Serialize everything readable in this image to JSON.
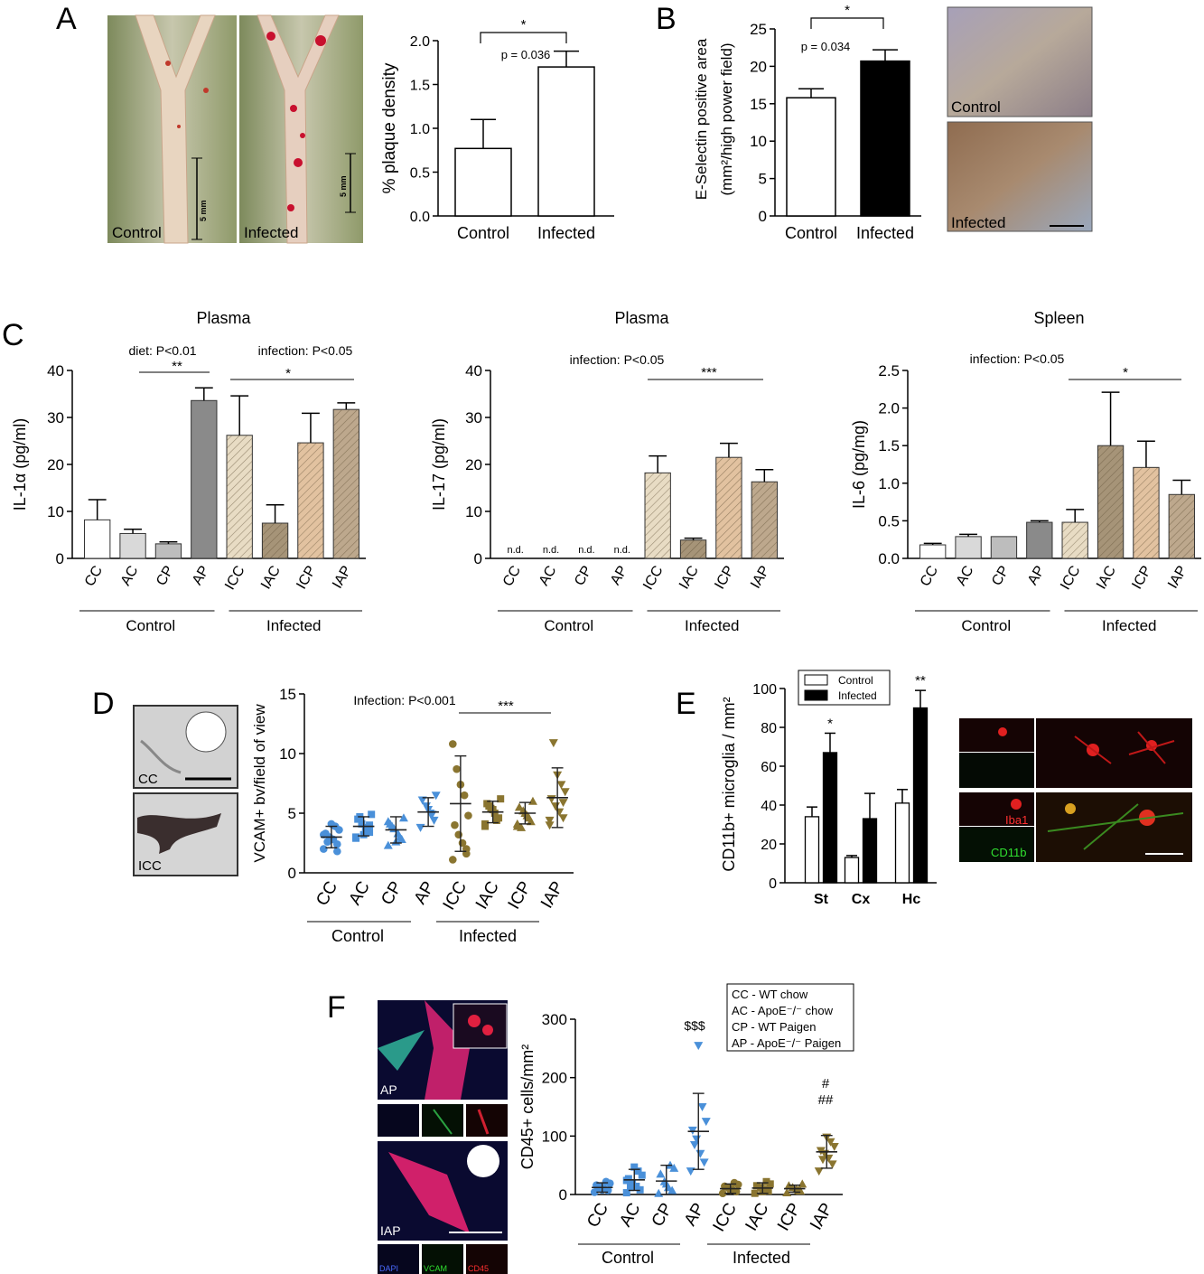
{
  "panel_labels": {
    "A": "A",
    "B": "B",
    "C": "C",
    "D": "D",
    "E": "E",
    "F": "F"
  },
  "photos": {
    "a_control": "Control",
    "a_infected": "Infected",
    "a_scale": "5 mm",
    "b_control": "Control",
    "b_infected": "Infected",
    "d_cc": "CC",
    "d_icc": "ICC",
    "e_iba1": "Iba1",
    "e_cd11b": "CD11b",
    "f_ap": "AP",
    "f_iap": "IAP",
    "f_dapi": "DAPI",
    "f_vcam": "VCAM",
    "f_cd45": "CD45"
  },
  "colors": {
    "control_white": "#ffffff",
    "ac_gray": "#d9d9d9",
    "cp_gray": "#bdbdbd",
    "ap_gray": "#8a8a8a",
    "icc_hatch": "#e8dcc4",
    "iac_hatch": "#a69478",
    "icp_hatch": "#e2c2a0",
    "iap_hatch": "#bda88d",
    "control_points": "#4a90d9",
    "infected_points": "#8a7530",
    "black_bar": "#000000"
  },
  "chart_data": [
    {
      "id": "A",
      "type": "bar",
      "categories": [
        "Control",
        "Infected"
      ],
      "values": [
        0.77,
        1.7
      ],
      "errors": [
        0.33,
        0.18
      ],
      "ylabel": "% plaque density",
      "ylim": [
        0,
        2.0
      ],
      "yticks": [
        "0.0",
        "0.5",
        "1.0",
        "1.5",
        "2.0"
      ],
      "significance": "*",
      "pvalue": "p = 0.036"
    },
    {
      "id": "B",
      "type": "bar",
      "categories": [
        "Control",
        "Infected"
      ],
      "values": [
        15.8,
        20.7
      ],
      "errors": [
        1.2,
        1.5
      ],
      "ylabel": "E-Selectin positive area",
      "ylabel2": "(mm²/high power field)",
      "ylim": [
        0,
        25
      ],
      "yticks": [
        "0",
        "5",
        "10",
        "15",
        "20",
        "25"
      ],
      "significance": "*",
      "pvalue": "p = 0.034"
    },
    {
      "id": "C1",
      "type": "bar",
      "title": "Plasma",
      "categories": [
        "CC",
        "AC",
        "CP",
        "AP",
        "ICC",
        "IAC",
        "ICP",
        "IAP"
      ],
      "values": [
        8.2,
        5.3,
        3.1,
        33.6,
        26.2,
        7.5,
        24.6,
        31.7
      ],
      "errors": [
        4.3,
        0.9,
        0.4,
        2.7,
        8.4,
        3.9,
        6.3,
        1.4
      ],
      "ylabel": "IL-1α (pg/ml)",
      "ylim": [
        0,
        40
      ],
      "yticks": [
        "0",
        "10",
        "20",
        "30",
        "40"
      ],
      "annotations": [
        "diet: P<0.01",
        "infection: P<0.05",
        "**",
        "*"
      ],
      "groups": [
        "Control",
        "Infected"
      ]
    },
    {
      "id": "C2",
      "type": "bar",
      "title": "Plasma",
      "categories": [
        "CC",
        "AC",
        "CP",
        "AP",
        "ICC",
        "IAC",
        "ICP",
        "IAP"
      ],
      "values": [
        0,
        0,
        0,
        0,
        18.2,
        3.9,
        21.5,
        16.3
      ],
      "errors": [
        0,
        0,
        0,
        0,
        3.6,
        0.4,
        3.0,
        2.6
      ],
      "nd_labels": [
        "n.d.",
        "n.d.",
        "n.d.",
        "n.d."
      ],
      "ylabel": "IL-17 (pg/ml)",
      "ylim": [
        0,
        40
      ],
      "yticks": [
        "0",
        "10",
        "20",
        "30",
        "40"
      ],
      "annotations": [
        "infection: P<0.05",
        "***"
      ],
      "groups": [
        "Control",
        "Infected"
      ]
    },
    {
      "id": "C3",
      "type": "bar",
      "title": "Spleen",
      "categories": [
        "CC",
        "AC",
        "CP",
        "AP",
        "ICC",
        "IAC",
        "ICP",
        "IAP"
      ],
      "values": [
        0.18,
        0.29,
        0.29,
        0.48,
        0.48,
        1.5,
        1.21,
        0.85
      ],
      "errors": [
        0.02,
        0.03,
        0.0,
        0.02,
        0.17,
        0.71,
        0.35,
        0.19
      ],
      "ylabel": "IL-6 (pg/mg)",
      "ylim": [
        0,
        2.5
      ],
      "yticks": [
        "0.0",
        "0.5",
        "1.0",
        "1.5",
        "2.0",
        "2.5"
      ],
      "annotations": [
        "infection: P<0.05",
        "*"
      ],
      "groups": [
        "Control",
        "Infected"
      ]
    },
    {
      "id": "D",
      "type": "scatter",
      "categories": [
        "CC",
        "AC",
        "CP",
        "AP",
        "ICC",
        "IAC",
        "ICP",
        "IAP"
      ],
      "means": [
        3.0,
        3.9,
        3.6,
        5.1,
        5.8,
        5.1,
        5.0,
        6.3
      ],
      "sd": [
        0.9,
        0.8,
        1.1,
        1.2,
        4.0,
        0.9,
        0.9,
        2.5
      ],
      "points": [
        [
          2.0,
          2.4,
          2.8,
          3.0,
          3.3,
          3.6,
          3.9,
          4.1,
          2.6,
          3.2,
          1.8
        ],
        [
          3.0,
          3.4,
          3.8,
          4.1,
          4.5,
          4.9,
          3.6,
          3.2,
          4.7,
          2.9,
          4.0
        ],
        [
          2.3,
          2.8,
          3.3,
          3.7,
          4.1,
          4.6,
          3.0,
          2.6,
          3.9,
          4.3
        ],
        [
          3.8,
          4.4,
          5.0,
          5.6,
          6.1,
          6.5,
          4.9,
          5.3
        ],
        [
          1.1,
          2.0,
          2.5,
          3.2,
          4.0,
          4.8,
          6.5,
          7.4,
          8.7,
          10.8,
          1.6
        ],
        [
          4.1,
          4.6,
          5.0,
          5.4,
          5.8,
          6.2,
          4.4,
          5.3,
          5.6,
          3.9
        ],
        [
          3.9,
          4.3,
          4.8,
          5.2,
          5.5,
          6.0,
          4.6,
          5.0,
          3.8,
          4.1
        ],
        [
          4.0,
          4.6,
          5.1,
          5.6,
          6.2,
          6.8,
          7.4,
          8.2,
          10.9,
          4.4,
          5.9
        ]
      ],
      "ylabel": "VCAM+ bv/field of view",
      "ylim": [
        0,
        15
      ],
      "yticks": [
        "0",
        "5",
        "10",
        "15"
      ],
      "annotations": [
        "Infection: P<0.001",
        "***"
      ],
      "groups": [
        "Control",
        "Infected"
      ]
    },
    {
      "id": "E",
      "type": "bar",
      "categories": [
        "St",
        "Cx",
        "Hc"
      ],
      "series": [
        {
          "name": "Control",
          "values": [
            34,
            13,
            41
          ],
          "errors": [
            5,
            1,
            7
          ]
        },
        {
          "name": "Infected",
          "values": [
            67,
            33,
            90
          ],
          "errors": [
            10,
            13,
            9
          ]
        }
      ],
      "significance": [
        "*",
        "",
        "**"
      ],
      "ylabel": "CD11b+ microglia / mm²",
      "ylim": [
        0,
        100
      ],
      "yticks": [
        "0",
        "20",
        "40",
        "60",
        "80",
        "100"
      ],
      "legend": "top-left"
    },
    {
      "id": "F",
      "type": "scatter",
      "categories": [
        "CC",
        "AC",
        "CP",
        "AP",
        "ICC",
        "IAC",
        "ICP",
        "IAP"
      ],
      "means": [
        12,
        25,
        23,
        108,
        10,
        11,
        10,
        73
      ],
      "sd": [
        8,
        18,
        27,
        65,
        8,
        9,
        6,
        28
      ],
      "points": [
        [
          4,
          7,
          10,
          13,
          16,
          19,
          22,
          8,
          11
        ],
        [
          3,
          8,
          14,
          20,
          27,
          33,
          40,
          47,
          12,
          24
        ],
        [
          2,
          7,
          12,
          22,
          35,
          45,
          50,
          18
        ],
        [
          40,
          55,
          70,
          95,
          110,
          125,
          150,
          255,
          85
        ],
        [
          2,
          5,
          8,
          11,
          14,
          17,
          20,
          7
        ],
        [
          2,
          6,
          9,
          12,
          15,
          18,
          22,
          5
        ],
        [
          3,
          6,
          9,
          12,
          15,
          18,
          7
        ],
        [
          40,
          52,
          62,
          70,
          75,
          82,
          90,
          98,
          60
        ]
      ],
      "ylabel": "CD45+ cells/mm²",
      "ylim": [
        0,
        300
      ],
      "yticks": [
        "0",
        "100",
        "200",
        "300"
      ],
      "annotations": [
        "$$$",
        "#",
        "##"
      ],
      "legend_text": [
        "CC - WT chow",
        "AC - ApoE⁻/⁻ chow",
        "CP - WT Paigen",
        "AP - ApoE⁻/⁻ Paigen"
      ],
      "groups": [
        "Control",
        "Infected"
      ]
    }
  ]
}
